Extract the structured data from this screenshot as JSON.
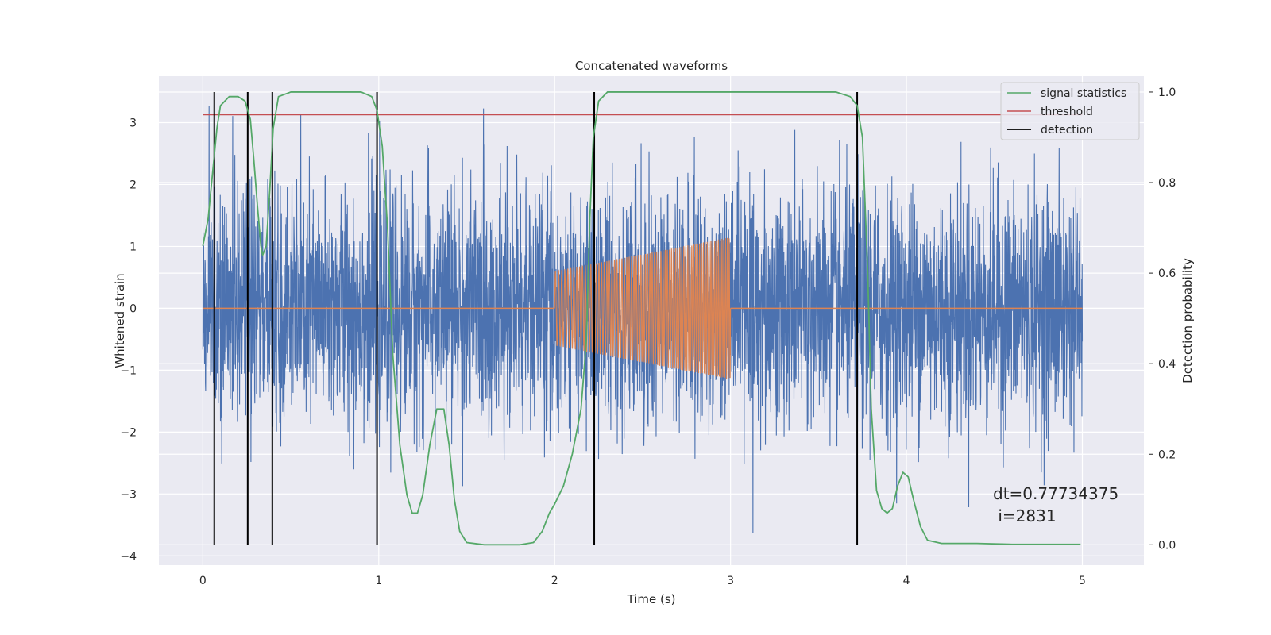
{
  "chart_data": {
    "type": "line",
    "title": "Concatenated waveforms",
    "xlabel": "Time (s)",
    "ylabel": "Whitened strain",
    "y2label": "Detection probability",
    "xlim": [
      -0.25,
      5.35
    ],
    "ylim": [
      -4.15,
      3.75
    ],
    "y2lim": [
      -0.045,
      1.035
    ],
    "x_ticks": [
      0,
      1,
      2,
      3,
      4,
      5
    ],
    "y_ticks": [
      -4,
      -3,
      -2,
      -1,
      0,
      1,
      2,
      3
    ],
    "y2_ticks": [
      0.0,
      0.2,
      0.4,
      0.6,
      0.8,
      1.0
    ],
    "x_tick_labels": [
      "0",
      "1",
      "2",
      "3",
      "4",
      "5"
    ],
    "y_tick_labels": [
      "−4",
      "−3",
      "−2",
      "−1",
      "0",
      "1",
      "2",
      "3"
    ],
    "y2_tick_labels": [
      "0.0",
      "0.2",
      "0.4",
      "0.6",
      "0.8",
      "1.0"
    ],
    "grid": true,
    "legend_position": "top-right",
    "series": [
      {
        "color": "#4c72b0",
        "axis": "left",
        "description": "noisy whitened strain, 0 to 5 s, amplitude approx within [-3.8, 3.4]",
        "x_range": [
          0,
          5
        ],
        "envelope_approx": [
          -3.8,
          3.4
        ]
      },
      {
        "color": "#dd8452",
        "axis": "left",
        "description": "injected chirp, 2 to 3 s, amplitude growing from 0.6 to 1.15",
        "x_range": [
          2,
          3
        ],
        "amplitude_start": 0.6,
        "amplitude_end": 1.15
      },
      {
        "name": "signal statistics",
        "color": "#55a868",
        "axis": "right",
        "points": [
          [
            0.0,
            0.66
          ],
          [
            0.03,
            0.72
          ],
          [
            0.06,
            0.84
          ],
          [
            0.08,
            0.92
          ],
          [
            0.1,
            0.97
          ],
          [
            0.15,
            0.99
          ],
          [
            0.2,
            0.99
          ],
          [
            0.24,
            0.98
          ],
          [
            0.27,
            0.94
          ],
          [
            0.29,
            0.85
          ],
          [
            0.31,
            0.75
          ],
          [
            0.33,
            0.66
          ],
          [
            0.34,
            0.64
          ],
          [
            0.36,
            0.66
          ],
          [
            0.38,
            0.78
          ],
          [
            0.4,
            0.92
          ],
          [
            0.43,
            0.99
          ],
          [
            0.5,
            1.0
          ],
          [
            0.9,
            1.0
          ],
          [
            0.96,
            0.99
          ],
          [
            0.99,
            0.96
          ],
          [
            1.02,
            0.88
          ],
          [
            1.05,
            0.7
          ],
          [
            1.08,
            0.42
          ],
          [
            1.12,
            0.22
          ],
          [
            1.16,
            0.11
          ],
          [
            1.19,
            0.07
          ],
          [
            1.22,
            0.07
          ],
          [
            1.25,
            0.11
          ],
          [
            1.29,
            0.22
          ],
          [
            1.33,
            0.3
          ],
          [
            1.37,
            0.3
          ],
          [
            1.4,
            0.22
          ],
          [
            1.43,
            0.1
          ],
          [
            1.46,
            0.03
          ],
          [
            1.5,
            0.005
          ],
          [
            1.6,
            0.0
          ],
          [
            1.8,
            0.0
          ],
          [
            1.88,
            0.005
          ],
          [
            1.93,
            0.03
          ],
          [
            1.97,
            0.07
          ],
          [
            2.0,
            0.09
          ],
          [
            2.05,
            0.13
          ],
          [
            2.1,
            0.2
          ],
          [
            2.15,
            0.3
          ],
          [
            2.18,
            0.45
          ],
          [
            2.2,
            0.72
          ],
          [
            2.22,
            0.9
          ],
          [
            2.25,
            0.98
          ],
          [
            2.3,
            1.0
          ],
          [
            3.6,
            1.0
          ],
          [
            3.68,
            0.99
          ],
          [
            3.72,
            0.97
          ],
          [
            3.75,
            0.9
          ],
          [
            3.78,
            0.6
          ],
          [
            3.8,
            0.3
          ],
          [
            3.83,
            0.12
          ],
          [
            3.86,
            0.08
          ],
          [
            3.89,
            0.07
          ],
          [
            3.92,
            0.08
          ],
          [
            3.95,
            0.13
          ],
          [
            3.98,
            0.16
          ],
          [
            4.01,
            0.15
          ],
          [
            4.04,
            0.1
          ],
          [
            4.08,
            0.04
          ],
          [
            4.12,
            0.01
          ],
          [
            4.2,
            0.003
          ],
          [
            4.4,
            0.003
          ],
          [
            4.6,
            0.001
          ],
          [
            4.99,
            0.001
          ]
        ]
      },
      {
        "name": "threshold",
        "color": "#c44e52",
        "axis": "right",
        "value": 0.95,
        "x_range": [
          0,
          5
        ]
      },
      {
        "name": "detection",
        "color": "#000000",
        "axis": "right",
        "x": [
          0.065,
          0.255,
          0.395,
          0.99,
          2.225,
          3.72
        ],
        "y_range": [
          0.0,
          1.0
        ]
      }
    ],
    "legend": [
      "signal statistics",
      "threshold",
      "detection"
    ],
    "annotation": {
      "line1": "dt=0.77734375",
      "line2": " i=2831"
    }
  }
}
